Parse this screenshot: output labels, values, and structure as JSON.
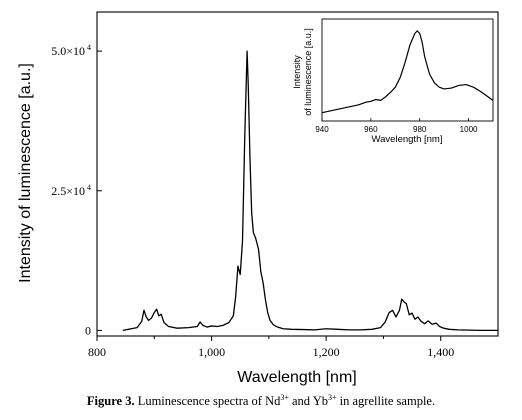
{
  "chart_data": [
    {
      "type": "line",
      "xlabel": "Wavelength [nm]",
      "ylabel": "Intensity of luminescence [a.u.]",
      "xlim": [
        800,
        1500
      ],
      "ylim": [
        -1000,
        57000
      ],
      "xticks": [
        800,
        1000,
        1200,
        1400
      ],
      "xtick_labels": [
        "800",
        "1,000",
        "1,200",
        "1,400"
      ],
      "yticks": [
        0,
        25000,
        50000
      ],
      "ytick_labels": [
        "0",
        "2.5×10",
        "5.0×10"
      ],
      "ytick_exponents": [
        "",
        "4",
        "4"
      ],
      "grid": false,
      "series": [
        {
          "x": [
            845,
            870,
            878,
            882,
            886,
            890,
            895,
            900,
            904,
            908,
            912,
            917,
            925,
            940,
            960,
            975,
            980,
            985,
            992,
            1000,
            1010,
            1020,
            1030,
            1038,
            1042,
            1046,
            1050,
            1054,
            1058,
            1062,
            1064,
            1067,
            1070,
            1073,
            1077,
            1082,
            1086,
            1090,
            1094,
            1098,
            1102,
            1108,
            1115,
            1125,
            1140,
            1160,
            1180,
            1200,
            1220,
            1240,
            1260,
            1280,
            1295,
            1303,
            1310,
            1316,
            1322,
            1328,
            1332,
            1336,
            1340,
            1345,
            1350,
            1355,
            1360,
            1366,
            1372,
            1378,
            1385,
            1392,
            1398,
            1405,
            1415,
            1430,
            1450,
            1470,
            1500
          ],
          "y": [
            0,
            500,
            1600,
            3600,
            2400,
            1800,
            2200,
            3200,
            3800,
            2600,
            2900,
            1400,
            700,
            400,
            500,
            700,
            1500,
            900,
            600,
            800,
            700,
            900,
            1400,
            2600,
            6000,
            11500,
            10000,
            16000,
            35000,
            50000,
            44000,
            31000,
            21000,
            17500,
            16500,
            14500,
            10500,
            8500,
            5500,
            3200,
            1800,
            1000,
            600,
            300,
            200,
            150,
            100,
            300,
            200,
            100,
            100,
            200,
            500,
            1500,
            3200,
            3600,
            2400,
            3600,
            5600,
            5100,
            4800,
            2800,
            3100,
            2000,
            2400,
            1600,
            1200,
            1700,
            1100,
            1300,
            700,
            400,
            200,
            100,
            50,
            0,
            0
          ]
        }
      ]
    },
    {
      "type": "line",
      "inset": true,
      "xlabel": "Wavelength [nm]",
      "ylabel": [
        "Intensity",
        "of luminescence [a.u.]"
      ],
      "xlim": [
        940,
        1010
      ],
      "ylim": [
        0,
        100
      ],
      "xticks": [
        940,
        960,
        980,
        1000
      ],
      "xtick_labels": [
        "940",
        "960",
        "980",
        "1000"
      ],
      "yticks": [],
      "grid": false,
      "series": [
        {
          "x": [
            940,
            945,
            950,
            955,
            958,
            960,
            962,
            964,
            966,
            968,
            970,
            972,
            974,
            976,
            978,
            979,
            980,
            981,
            982,
            984,
            986,
            988,
            990,
            993,
            996,
            999,
            1002,
            1005,
            1008,
            1010
          ],
          "y": [
            6,
            9,
            12,
            15,
            18,
            19,
            21,
            20,
            24,
            29,
            35,
            46,
            63,
            83,
            96,
            99,
            96,
            86,
            70,
            50,
            40,
            35,
            33,
            34,
            37,
            38,
            35,
            30,
            24,
            20
          ]
        }
      ]
    }
  ],
  "caption": {
    "label": "Figure 3.",
    "text_part1": " Luminescence spectra of Nd",
    "sup1": "3+",
    "text_part2": " and Yb",
    "sup2": "3+",
    "text_part3": " in agrellite sample."
  },
  "colors": {
    "line": "#000000",
    "axis": "#000000",
    "background": "#ffffff"
  }
}
